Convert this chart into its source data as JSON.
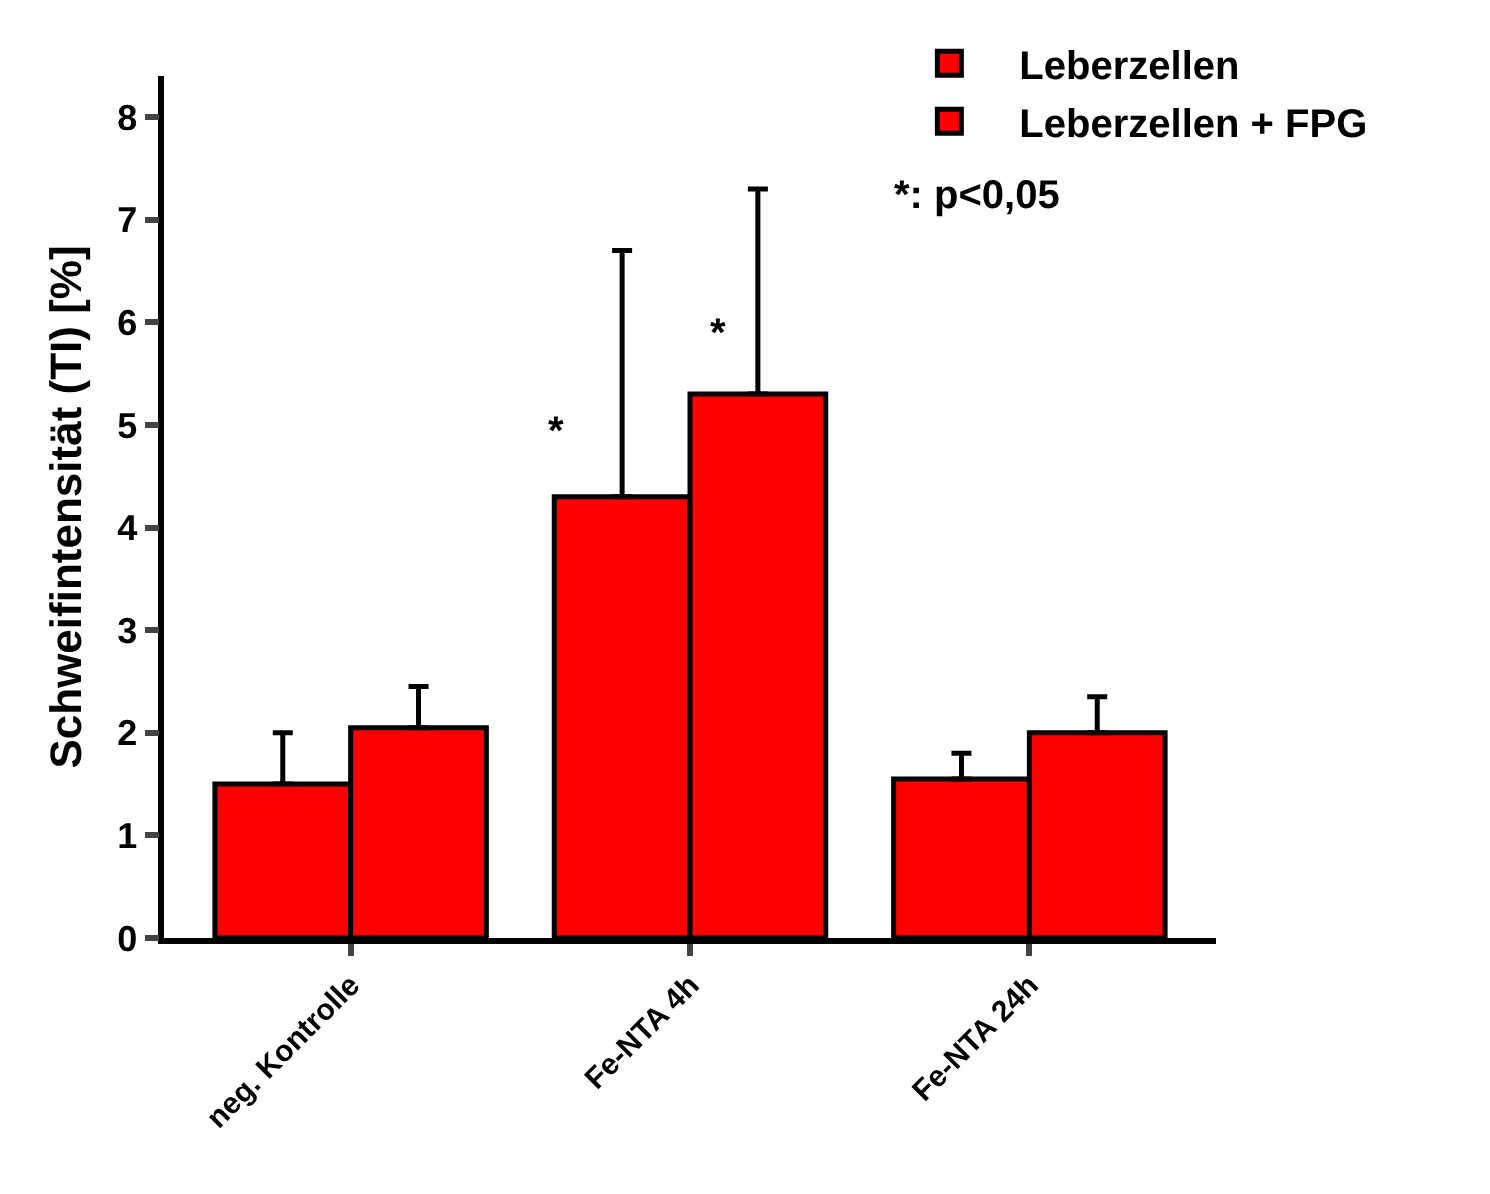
{
  "chart_data": {
    "type": "bar",
    "ylabel": "Schweifintensität (TI) [%]",
    "categories": [
      "neg. Kontrolle",
      "Fe-NTA 4h",
      "Fe-NTA 24h"
    ],
    "series": [
      {
        "name": "Leberzellen",
        "color": "#ff0000",
        "values": [
          1.5,
          4.3,
          1.55
        ],
        "errors": [
          [
            1.5,
            2.0
          ],
          [
            4.3,
            6.7
          ],
          [
            1.55,
            1.8
          ]
        ]
      },
      {
        "name": "Leberzellen + FPG",
        "color": "#ff0000",
        "values": [
          2.05,
          5.3,
          2.0
        ],
        "errors": [
          [
            2.05,
            2.45
          ],
          [
            5.3,
            7.3
          ],
          [
            2.0,
            2.35
          ]
        ]
      }
    ],
    "ylim": [
      0,
      8.4
    ],
    "yticks": [
      0,
      1,
      2,
      3,
      4,
      5,
      6,
      7,
      8
    ],
    "grid": false,
    "legend": "top right",
    "annotations": [
      {
        "text": "*",
        "x": "Fe-NTA 4h",
        "y": 4.3
      },
      "*",
      "*: p<0,05"
    ]
  }
}
